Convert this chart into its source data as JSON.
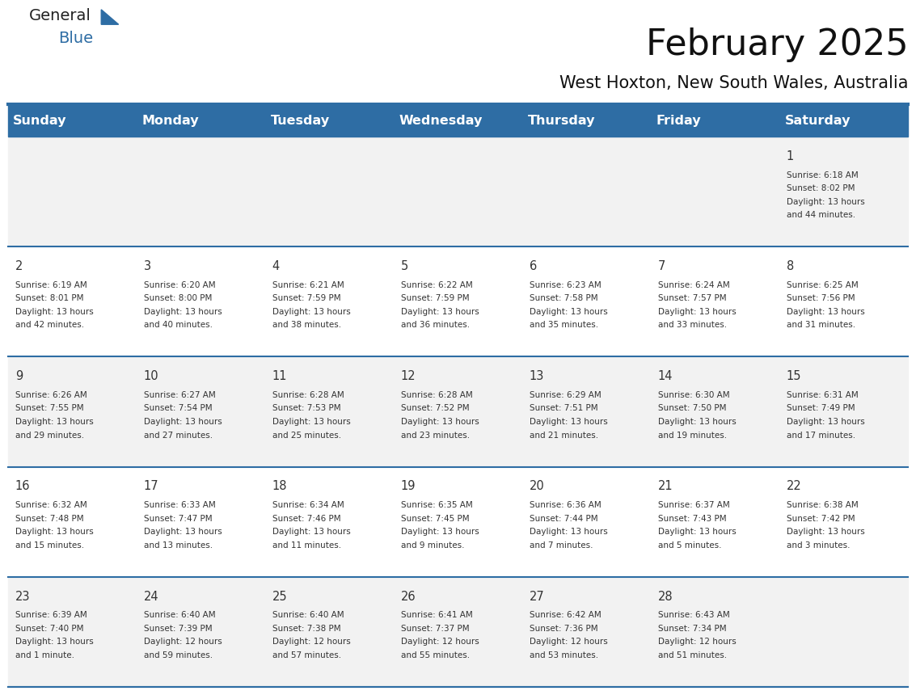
{
  "title": "February 2025",
  "subtitle": "West Hoxton, New South Wales, Australia",
  "days_of_week": [
    "Sunday",
    "Monday",
    "Tuesday",
    "Wednesday",
    "Thursday",
    "Friday",
    "Saturday"
  ],
  "header_bg": "#2E6DA4",
  "header_text_color": "#FFFFFF",
  "cell_bg_odd": "#F2F2F2",
  "cell_bg_even": "#FFFFFF",
  "divider_color": "#2E6DA4",
  "text_color": "#333333",
  "day_num_color": "#333333",
  "logo_general_color": "#222222",
  "logo_blue_color": "#2E6DA4",
  "calendar_data": [
    {
      "day": 1,
      "col": 6,
      "row": 0,
      "sunrise": "6:18 AM",
      "sunset": "8:02 PM",
      "daylight_hours": 13,
      "daylight_minutes": 44
    },
    {
      "day": 2,
      "col": 0,
      "row": 1,
      "sunrise": "6:19 AM",
      "sunset": "8:01 PM",
      "daylight_hours": 13,
      "daylight_minutes": 42
    },
    {
      "day": 3,
      "col": 1,
      "row": 1,
      "sunrise": "6:20 AM",
      "sunset": "8:00 PM",
      "daylight_hours": 13,
      "daylight_minutes": 40
    },
    {
      "day": 4,
      "col": 2,
      "row": 1,
      "sunrise": "6:21 AM",
      "sunset": "7:59 PM",
      "daylight_hours": 13,
      "daylight_minutes": 38
    },
    {
      "day": 5,
      "col": 3,
      "row": 1,
      "sunrise": "6:22 AM",
      "sunset": "7:59 PM",
      "daylight_hours": 13,
      "daylight_minutes": 36
    },
    {
      "day": 6,
      "col": 4,
      "row": 1,
      "sunrise": "6:23 AM",
      "sunset": "7:58 PM",
      "daylight_hours": 13,
      "daylight_minutes": 35
    },
    {
      "day": 7,
      "col": 5,
      "row": 1,
      "sunrise": "6:24 AM",
      "sunset": "7:57 PM",
      "daylight_hours": 13,
      "daylight_minutes": 33
    },
    {
      "day": 8,
      "col": 6,
      "row": 1,
      "sunrise": "6:25 AM",
      "sunset": "7:56 PM",
      "daylight_hours": 13,
      "daylight_minutes": 31
    },
    {
      "day": 9,
      "col": 0,
      "row": 2,
      "sunrise": "6:26 AM",
      "sunset": "7:55 PM",
      "daylight_hours": 13,
      "daylight_minutes": 29
    },
    {
      "day": 10,
      "col": 1,
      "row": 2,
      "sunrise": "6:27 AM",
      "sunset": "7:54 PM",
      "daylight_hours": 13,
      "daylight_minutes": 27
    },
    {
      "day": 11,
      "col": 2,
      "row": 2,
      "sunrise": "6:28 AM",
      "sunset": "7:53 PM",
      "daylight_hours": 13,
      "daylight_minutes": 25
    },
    {
      "day": 12,
      "col": 3,
      "row": 2,
      "sunrise": "6:28 AM",
      "sunset": "7:52 PM",
      "daylight_hours": 13,
      "daylight_minutes": 23
    },
    {
      "day": 13,
      "col": 4,
      "row": 2,
      "sunrise": "6:29 AM",
      "sunset": "7:51 PM",
      "daylight_hours": 13,
      "daylight_minutes": 21
    },
    {
      "day": 14,
      "col": 5,
      "row": 2,
      "sunrise": "6:30 AM",
      "sunset": "7:50 PM",
      "daylight_hours": 13,
      "daylight_minutes": 19
    },
    {
      "day": 15,
      "col": 6,
      "row": 2,
      "sunrise": "6:31 AM",
      "sunset": "7:49 PM",
      "daylight_hours": 13,
      "daylight_minutes": 17
    },
    {
      "day": 16,
      "col": 0,
      "row": 3,
      "sunrise": "6:32 AM",
      "sunset": "7:48 PM",
      "daylight_hours": 13,
      "daylight_minutes": 15
    },
    {
      "day": 17,
      "col": 1,
      "row": 3,
      "sunrise": "6:33 AM",
      "sunset": "7:47 PM",
      "daylight_hours": 13,
      "daylight_minutes": 13
    },
    {
      "day": 18,
      "col": 2,
      "row": 3,
      "sunrise": "6:34 AM",
      "sunset": "7:46 PM",
      "daylight_hours": 13,
      "daylight_minutes": 11
    },
    {
      "day": 19,
      "col": 3,
      "row": 3,
      "sunrise": "6:35 AM",
      "sunset": "7:45 PM",
      "daylight_hours": 13,
      "daylight_minutes": 9
    },
    {
      "day": 20,
      "col": 4,
      "row": 3,
      "sunrise": "6:36 AM",
      "sunset": "7:44 PM",
      "daylight_hours": 13,
      "daylight_minutes": 7
    },
    {
      "day": 21,
      "col": 5,
      "row": 3,
      "sunrise": "6:37 AM",
      "sunset": "7:43 PM",
      "daylight_hours": 13,
      "daylight_minutes": 5
    },
    {
      "day": 22,
      "col": 6,
      "row": 3,
      "sunrise": "6:38 AM",
      "sunset": "7:42 PM",
      "daylight_hours": 13,
      "daylight_minutes": 3
    },
    {
      "day": 23,
      "col": 0,
      "row": 4,
      "sunrise": "6:39 AM",
      "sunset": "7:40 PM",
      "daylight_hours": 13,
      "daylight_minutes": 1
    },
    {
      "day": 24,
      "col": 1,
      "row": 4,
      "sunrise": "6:40 AM",
      "sunset": "7:39 PM",
      "daylight_hours": 12,
      "daylight_minutes": 59
    },
    {
      "day": 25,
      "col": 2,
      "row": 4,
      "sunrise": "6:40 AM",
      "sunset": "7:38 PM",
      "daylight_hours": 12,
      "daylight_minutes": 57
    },
    {
      "day": 26,
      "col": 3,
      "row": 4,
      "sunrise": "6:41 AM",
      "sunset": "7:37 PM",
      "daylight_hours": 12,
      "daylight_minutes": 55
    },
    {
      "day": 27,
      "col": 4,
      "row": 4,
      "sunrise": "6:42 AM",
      "sunset": "7:36 PM",
      "daylight_hours": 12,
      "daylight_minutes": 53
    },
    {
      "day": 28,
      "col": 5,
      "row": 4,
      "sunrise": "6:43 AM",
      "sunset": "7:34 PM",
      "daylight_hours": 12,
      "daylight_minutes": 51
    }
  ]
}
